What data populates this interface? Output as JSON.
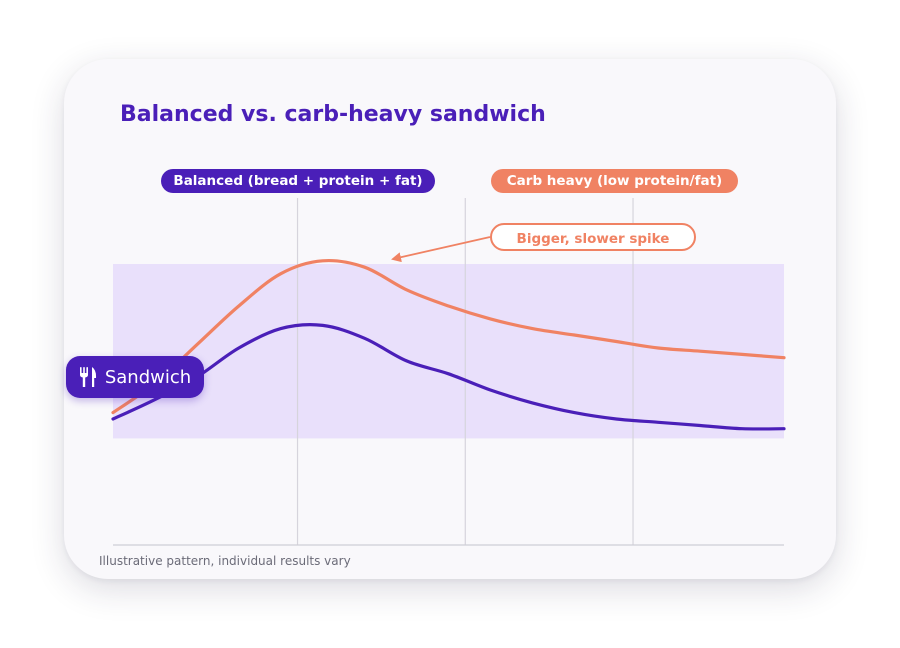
{
  "title": "Balanced vs. carb-heavy sandwich",
  "legend": {
    "balanced": "Balanced (bread + protein + fat)",
    "carb_heavy": "Carb heavy (low protein/fat)"
  },
  "annotation": "Bigger, slower spike",
  "meal_marker": {
    "label": "Sandwich",
    "icon": "fork-knife-icon"
  },
  "footnote": "Illustrative pattern, individual results vary",
  "colors": {
    "balanced": "#4a1fb8",
    "carb_heavy": "#f08263",
    "target_range": "#e9e0fb"
  },
  "chart_data": {
    "type": "line",
    "title": "Balanced vs. carb-heavy sandwich",
    "xlabel": "",
    "ylabel": "",
    "grid": "vertical",
    "x": [
      0,
      0.5,
      1,
      1.5,
      2,
      2.5,
      3,
      3.5,
      4,
      4.5,
      5,
      5.5,
      6,
      6.5,
      7,
      7.5,
      8
    ],
    "xlim": [
      0,
      8
    ],
    "ylim": [
      0,
      100
    ],
    "x_gridlines": [
      2.2,
      4.2,
      6.2
    ],
    "target_range": [
      33,
      87
    ],
    "series": [
      {
        "name": "Balanced (bread + protein + fat)",
        "values": [
          39,
          45,
          52,
          61,
          67,
          68,
          64,
          57,
          53,
          48,
          44,
          41,
          39,
          38,
          37,
          36,
          36
        ]
      },
      {
        "name": "Carb heavy (low protein/fat)",
        "values": [
          41,
          50,
          62,
          74,
          84,
          88,
          86,
          79,
          74,
          70,
          67,
          65,
          63,
          61,
          60,
          59,
          58
        ]
      }
    ]
  }
}
